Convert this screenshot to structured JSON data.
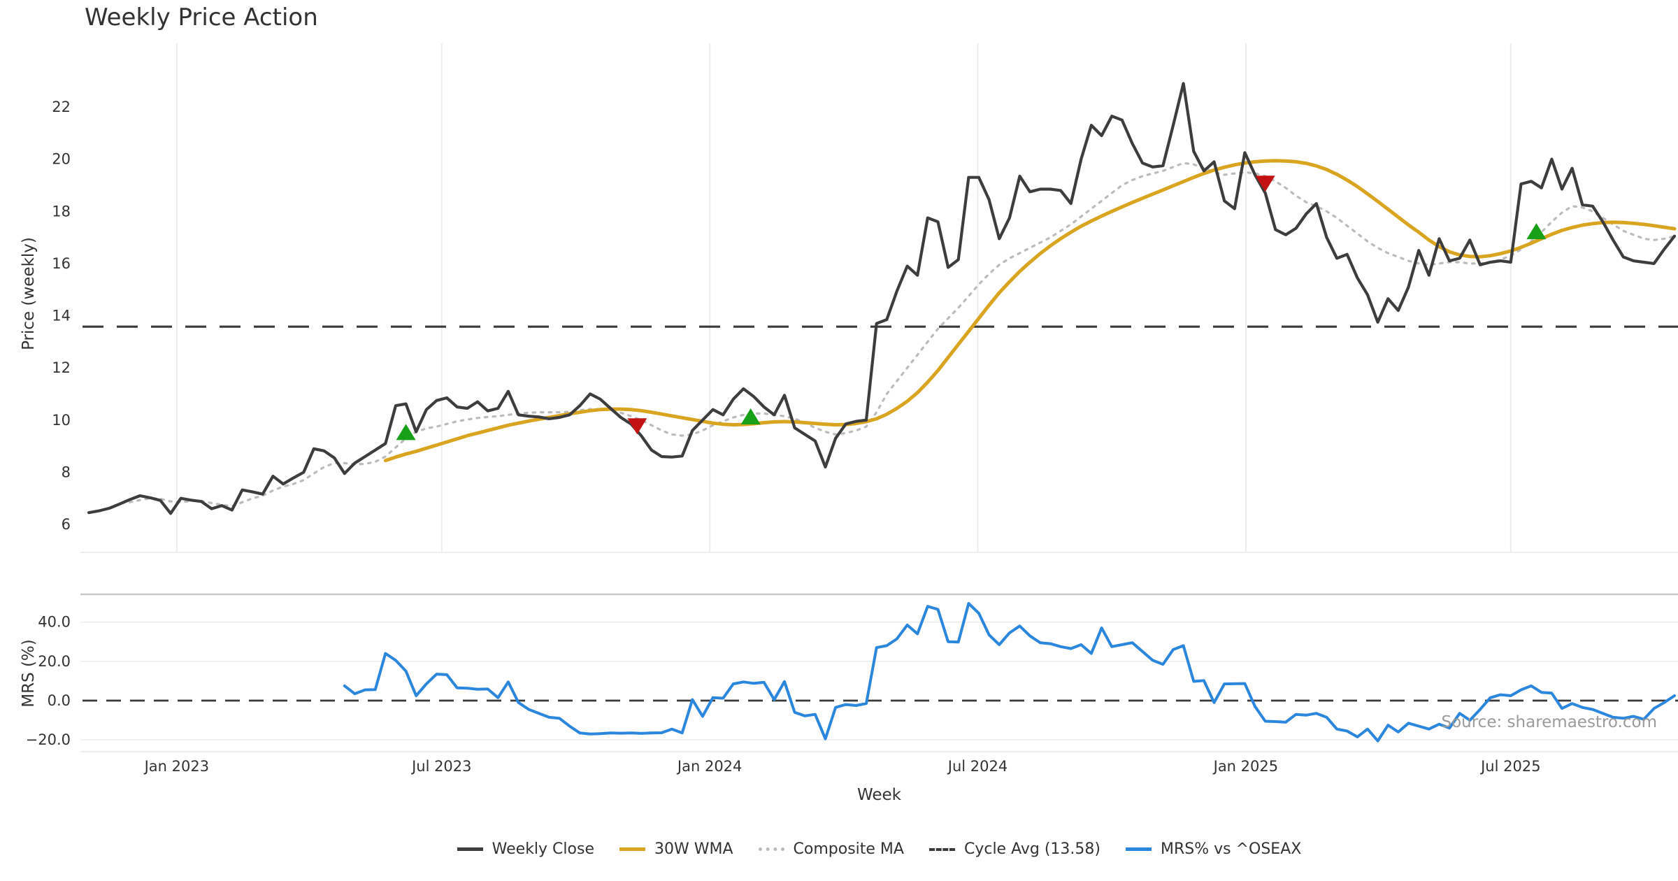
{
  "title": "Weekly Price Action",
  "source_note": "Source: sharemaestro.com",
  "legend": {
    "items": [
      {
        "label": "Weekly Close",
        "color": "#3d3d3d",
        "style": "solid"
      },
      {
        "label": "30W WMA",
        "color": "#d9a520",
        "style": "solid"
      },
      {
        "label": "Composite MA",
        "color": "#bcbcbc",
        "style": "dotted"
      },
      {
        "label": "Cycle Avg (13.58)",
        "color": "#3a3a3a",
        "style": "dashed"
      },
      {
        "label": "MRS% vs ^OSEAX",
        "color": "#2b86dd",
        "style": "solid"
      }
    ]
  },
  "colors": {
    "close": "#3d3d3d",
    "wma": "#d9a520",
    "composite": "#bcbcbc",
    "cycle": "#3a3a3a",
    "mrs": "#2b86dd",
    "buy": "#18a018",
    "sell": "#c41212",
    "grid": "#ececec",
    "grid_light": "#f0f0f0",
    "panel_border": "#c9c9c9",
    "tick_text": "#333333"
  },
  "chart_data": [
    {
      "type": "line",
      "panel": "price",
      "title": "Weekly Price Action",
      "ylabel": "Price (weekly)",
      "ylim": [
        4.9,
        24.4
      ],
      "yticks": [
        22,
        20,
        18,
        16,
        14,
        12,
        10,
        8,
        6
      ],
      "grid": "vertical-only",
      "x_axis": {
        "tick_labels": [
          "Jan 2023",
          "Jul 2023",
          "Jan 2024",
          "Jul 2024",
          "Jan 2025",
          "Jul 2025"
        ],
        "tick_weeks": [
          8.6,
          34.5,
          60.7,
          86.9,
          113.1,
          139.0
        ]
      },
      "series": [
        {
          "name": "Weekly Close",
          "style": "solid",
          "start_week": 0,
          "values": [
            6.45,
            6.52,
            6.62,
            6.78,
            6.95,
            7.1,
            7.02,
            6.92,
            6.42,
            7.0,
            6.93,
            6.88,
            6.6,
            6.72,
            6.55,
            7.32,
            7.25,
            7.16,
            7.85,
            7.55,
            7.78,
            8.0,
            8.9,
            8.82,
            8.55,
            7.95,
            8.35,
            8.6,
            8.85,
            9.1,
            10.55,
            10.62,
            9.55,
            10.4,
            10.75,
            10.85,
            10.5,
            10.45,
            10.7,
            10.35,
            10.45,
            11.1,
            10.2,
            10.15,
            10.12,
            10.05,
            10.1,
            10.2,
            10.55,
            11.0,
            10.8,
            10.45,
            10.1,
            9.85,
            9.4,
            8.85,
            8.6,
            8.58,
            8.62,
            9.6,
            10.0,
            10.4,
            10.2,
            10.8,
            11.2,
            10.9,
            10.5,
            10.2,
            10.95,
            9.7,
            9.45,
            9.2,
            8.2,
            9.3,
            9.85,
            9.95,
            10.0,
            13.7,
            13.85,
            14.95,
            15.9,
            15.55,
            17.75,
            17.6,
            15.85,
            16.15,
            19.3,
            19.3,
            18.45,
            16.95,
            17.75,
            19.35,
            18.75,
            18.85,
            18.85,
            18.8,
            18.3,
            20.0,
            21.3,
            20.9,
            21.65,
            21.5,
            20.6,
            19.85,
            19.7,
            19.75,
            21.3,
            22.9,
            20.3,
            19.55,
            19.9,
            18.4,
            18.1,
            20.25,
            19.4,
            18.7,
            17.3,
            17.1,
            17.35,
            17.9,
            18.3,
            17.0,
            16.2,
            16.35,
            15.45,
            14.8,
            13.75,
            14.65,
            14.2,
            15.1,
            16.5,
            15.55,
            16.95,
            16.1,
            16.2,
            16.9,
            15.95,
            16.05,
            16.1,
            16.05,
            19.05,
            19.15,
            18.9,
            20.0,
            18.85,
            19.65,
            18.25,
            18.2,
            17.6,
            16.9,
            16.25,
            16.1,
            16.05,
            16.0,
            16.55,
            17.05
          ]
        },
        {
          "name": "30W WMA",
          "style": "solid",
          "start_week": 29,
          "values": [
            8.45,
            8.58,
            8.7,
            8.8,
            8.92,
            9.04,
            9.16,
            9.28,
            9.4,
            9.5,
            9.6,
            9.7,
            9.8,
            9.88,
            9.96,
            10.03,
            10.1,
            10.17,
            10.24,
            10.3,
            10.36,
            10.4,
            10.42,
            10.42,
            10.4,
            10.36,
            10.3,
            10.23,
            10.16,
            10.09,
            10.02,
            9.95,
            9.88,
            9.84,
            9.82,
            9.83,
            9.86,
            9.9,
            9.93,
            9.94,
            9.93,
            9.9,
            9.87,
            9.84,
            9.82,
            9.83,
            9.87,
            9.94,
            10.05,
            10.22,
            10.45,
            10.72,
            11.05,
            11.45,
            11.9,
            12.4,
            12.9,
            13.4,
            13.9,
            14.4,
            14.88,
            15.3,
            15.7,
            16.05,
            16.38,
            16.68,
            16.95,
            17.2,
            17.43,
            17.63,
            17.82,
            18.0,
            18.17,
            18.34,
            18.5,
            18.66,
            18.82,
            18.98,
            19.14,
            19.3,
            19.45,
            19.58,
            19.69,
            19.78,
            19.85,
            19.9,
            19.93,
            19.94,
            19.93,
            19.9,
            19.84,
            19.74,
            19.6,
            19.42,
            19.2,
            18.95,
            18.67,
            18.38,
            18.08,
            17.78,
            17.48,
            17.2,
            16.9,
            16.65,
            16.45,
            16.33,
            16.27,
            16.26,
            16.3,
            16.38,
            16.48,
            16.62,
            16.78,
            16.95,
            17.12,
            17.27,
            17.38,
            17.47,
            17.53,
            17.57,
            17.58,
            17.57,
            17.54,
            17.5,
            17.45,
            17.39,
            17.33
          ]
        },
        {
          "name": "Composite MA",
          "style": "dotted",
          "start_week": 4,
          "values": [
            6.85,
            6.93,
            7.0,
            6.98,
            6.88,
            6.85,
            6.9,
            6.9,
            6.82,
            6.75,
            6.7,
            6.85,
            7.0,
            7.1,
            7.3,
            7.45,
            7.55,
            7.7,
            7.95,
            8.2,
            8.35,
            8.35,
            8.3,
            8.32,
            8.4,
            8.6,
            8.95,
            9.3,
            9.55,
            9.68,
            9.75,
            9.85,
            9.95,
            10.02,
            10.08,
            10.12,
            10.15,
            10.2,
            10.25,
            10.28,
            10.3,
            10.3,
            10.3,
            10.32,
            10.38,
            10.42,
            10.42,
            10.38,
            10.28,
            10.15,
            10.0,
            9.8,
            9.6,
            9.45,
            9.4,
            9.45,
            9.6,
            9.8,
            9.95,
            10.1,
            10.2,
            10.25,
            10.25,
            10.2,
            10.15,
            10.05,
            9.9,
            9.7,
            9.55,
            9.45,
            9.5,
            9.6,
            9.75,
            10.3,
            11.0,
            11.5,
            12.0,
            12.5,
            13.0,
            13.5,
            13.9,
            14.3,
            14.75,
            15.2,
            15.6,
            15.95,
            16.2,
            16.4,
            16.6,
            16.8,
            17.0,
            17.25,
            17.5,
            17.8,
            18.1,
            18.4,
            18.7,
            19.0,
            19.2,
            19.35,
            19.45,
            19.55,
            19.7,
            19.85,
            19.8,
            19.65,
            19.5,
            19.4,
            19.45,
            19.5,
            19.45,
            19.35,
            19.15,
            18.9,
            18.6,
            18.35,
            18.2,
            18.0,
            17.75,
            17.45,
            17.15,
            16.85,
            16.6,
            16.4,
            16.25,
            16.1,
            16.0,
            15.95,
            16.0,
            16.05,
            16.05,
            16.0,
            16.0,
            16.05,
            16.15,
            16.3,
            16.55,
            16.85,
            17.2,
            17.6,
            17.95,
            18.2,
            18.15,
            18.0,
            17.75,
            17.5,
            17.25,
            17.1,
            16.95,
            16.9,
            16.95,
            17.05
          ]
        },
        {
          "name": "Cycle Avg",
          "style": "dashed",
          "type": "hline",
          "value": 13.58
        }
      ],
      "markers": {
        "buy": {
          "shape": "triangle-up",
          "points": [
            {
              "week": 31,
              "value": 9.5
            },
            {
              "week": 64.7,
              "value": 10.1
            },
            {
              "week": 141.5,
              "value": 17.2
            }
          ]
        },
        "sell": {
          "shape": "triangle-down",
          "points": [
            {
              "week": 53.6,
              "value": 9.8
            },
            {
              "week": 115,
              "value": 19.1
            }
          ]
        }
      }
    },
    {
      "type": "line",
      "panel": "mrs",
      "ylabel": "MRS (%)",
      "xlabel": "Week",
      "ylim": [
        -26,
        54
      ],
      "yticks": [
        {
          "v": 40,
          "label": "40.0"
        },
        {
          "v": 20,
          "label": "20.0"
        },
        {
          "v": 0,
          "label": "0.0"
        },
        {
          "v": -20,
          "label": "−20.0"
        }
      ],
      "zero_line": {
        "style": "dashed",
        "value": 0
      },
      "series": [
        {
          "name": "MRS% vs ^OSEAX",
          "style": "solid",
          "start_week": 25,
          "values": [
            7.5,
            3.5,
            5.5,
            5.6,
            24,
            20.5,
            15,
            2.5,
            8.5,
            13.5,
            13.2,
            6.5,
            6.3,
            5.8,
            5.9,
            1.5,
            9.5,
            -1,
            -4.5,
            -6.5,
            -8.5,
            -9,
            -13,
            -16.5,
            -17,
            -16.8,
            -16.5,
            -16.6,
            -16.5,
            -16.7,
            -16.5,
            -16.4,
            -14.5,
            -16.5,
            0.5,
            -8,
            1.5,
            1.2,
            8.5,
            9.5,
            8.8,
            9.3,
            0.5,
            9.7,
            -6,
            -7.8,
            -7,
            -19.5,
            -3.5,
            -2,
            -2.5,
            -1.5,
            27,
            28,
            31.5,
            38.5,
            34,
            48,
            46.5,
            30,
            29.8,
            49.5,
            44.5,
            33.5,
            28.5,
            34.5,
            38,
            33,
            29.5,
            29,
            27.5,
            26.5,
            28.5,
            24,
            37,
            27.5,
            28.5,
            29.5,
            25,
            20.5,
            18.5,
            26,
            28,
            9.8,
            10.2,
            -1,
            8.5,
            8.6,
            8.7,
            -3,
            -10.5,
            -10.7,
            -11,
            -7,
            -7.4,
            -6.5,
            -8.5,
            -14.5,
            -15.5,
            -18.5,
            -14.5,
            -20.5,
            -12.5,
            -16,
            -11.5,
            -13,
            -14.5,
            -12,
            -14,
            -6.5,
            -10,
            -4.5,
            1.5,
            3,
            2.5,
            5.5,
            7.5,
            4.2,
            3.8,
            -4,
            -1.5,
            -3.5,
            -4.5,
            -6.5,
            -8.5,
            -9,
            -8,
            -9.5,
            -4,
            -1,
            2.5
          ]
        }
      ]
    }
  ]
}
